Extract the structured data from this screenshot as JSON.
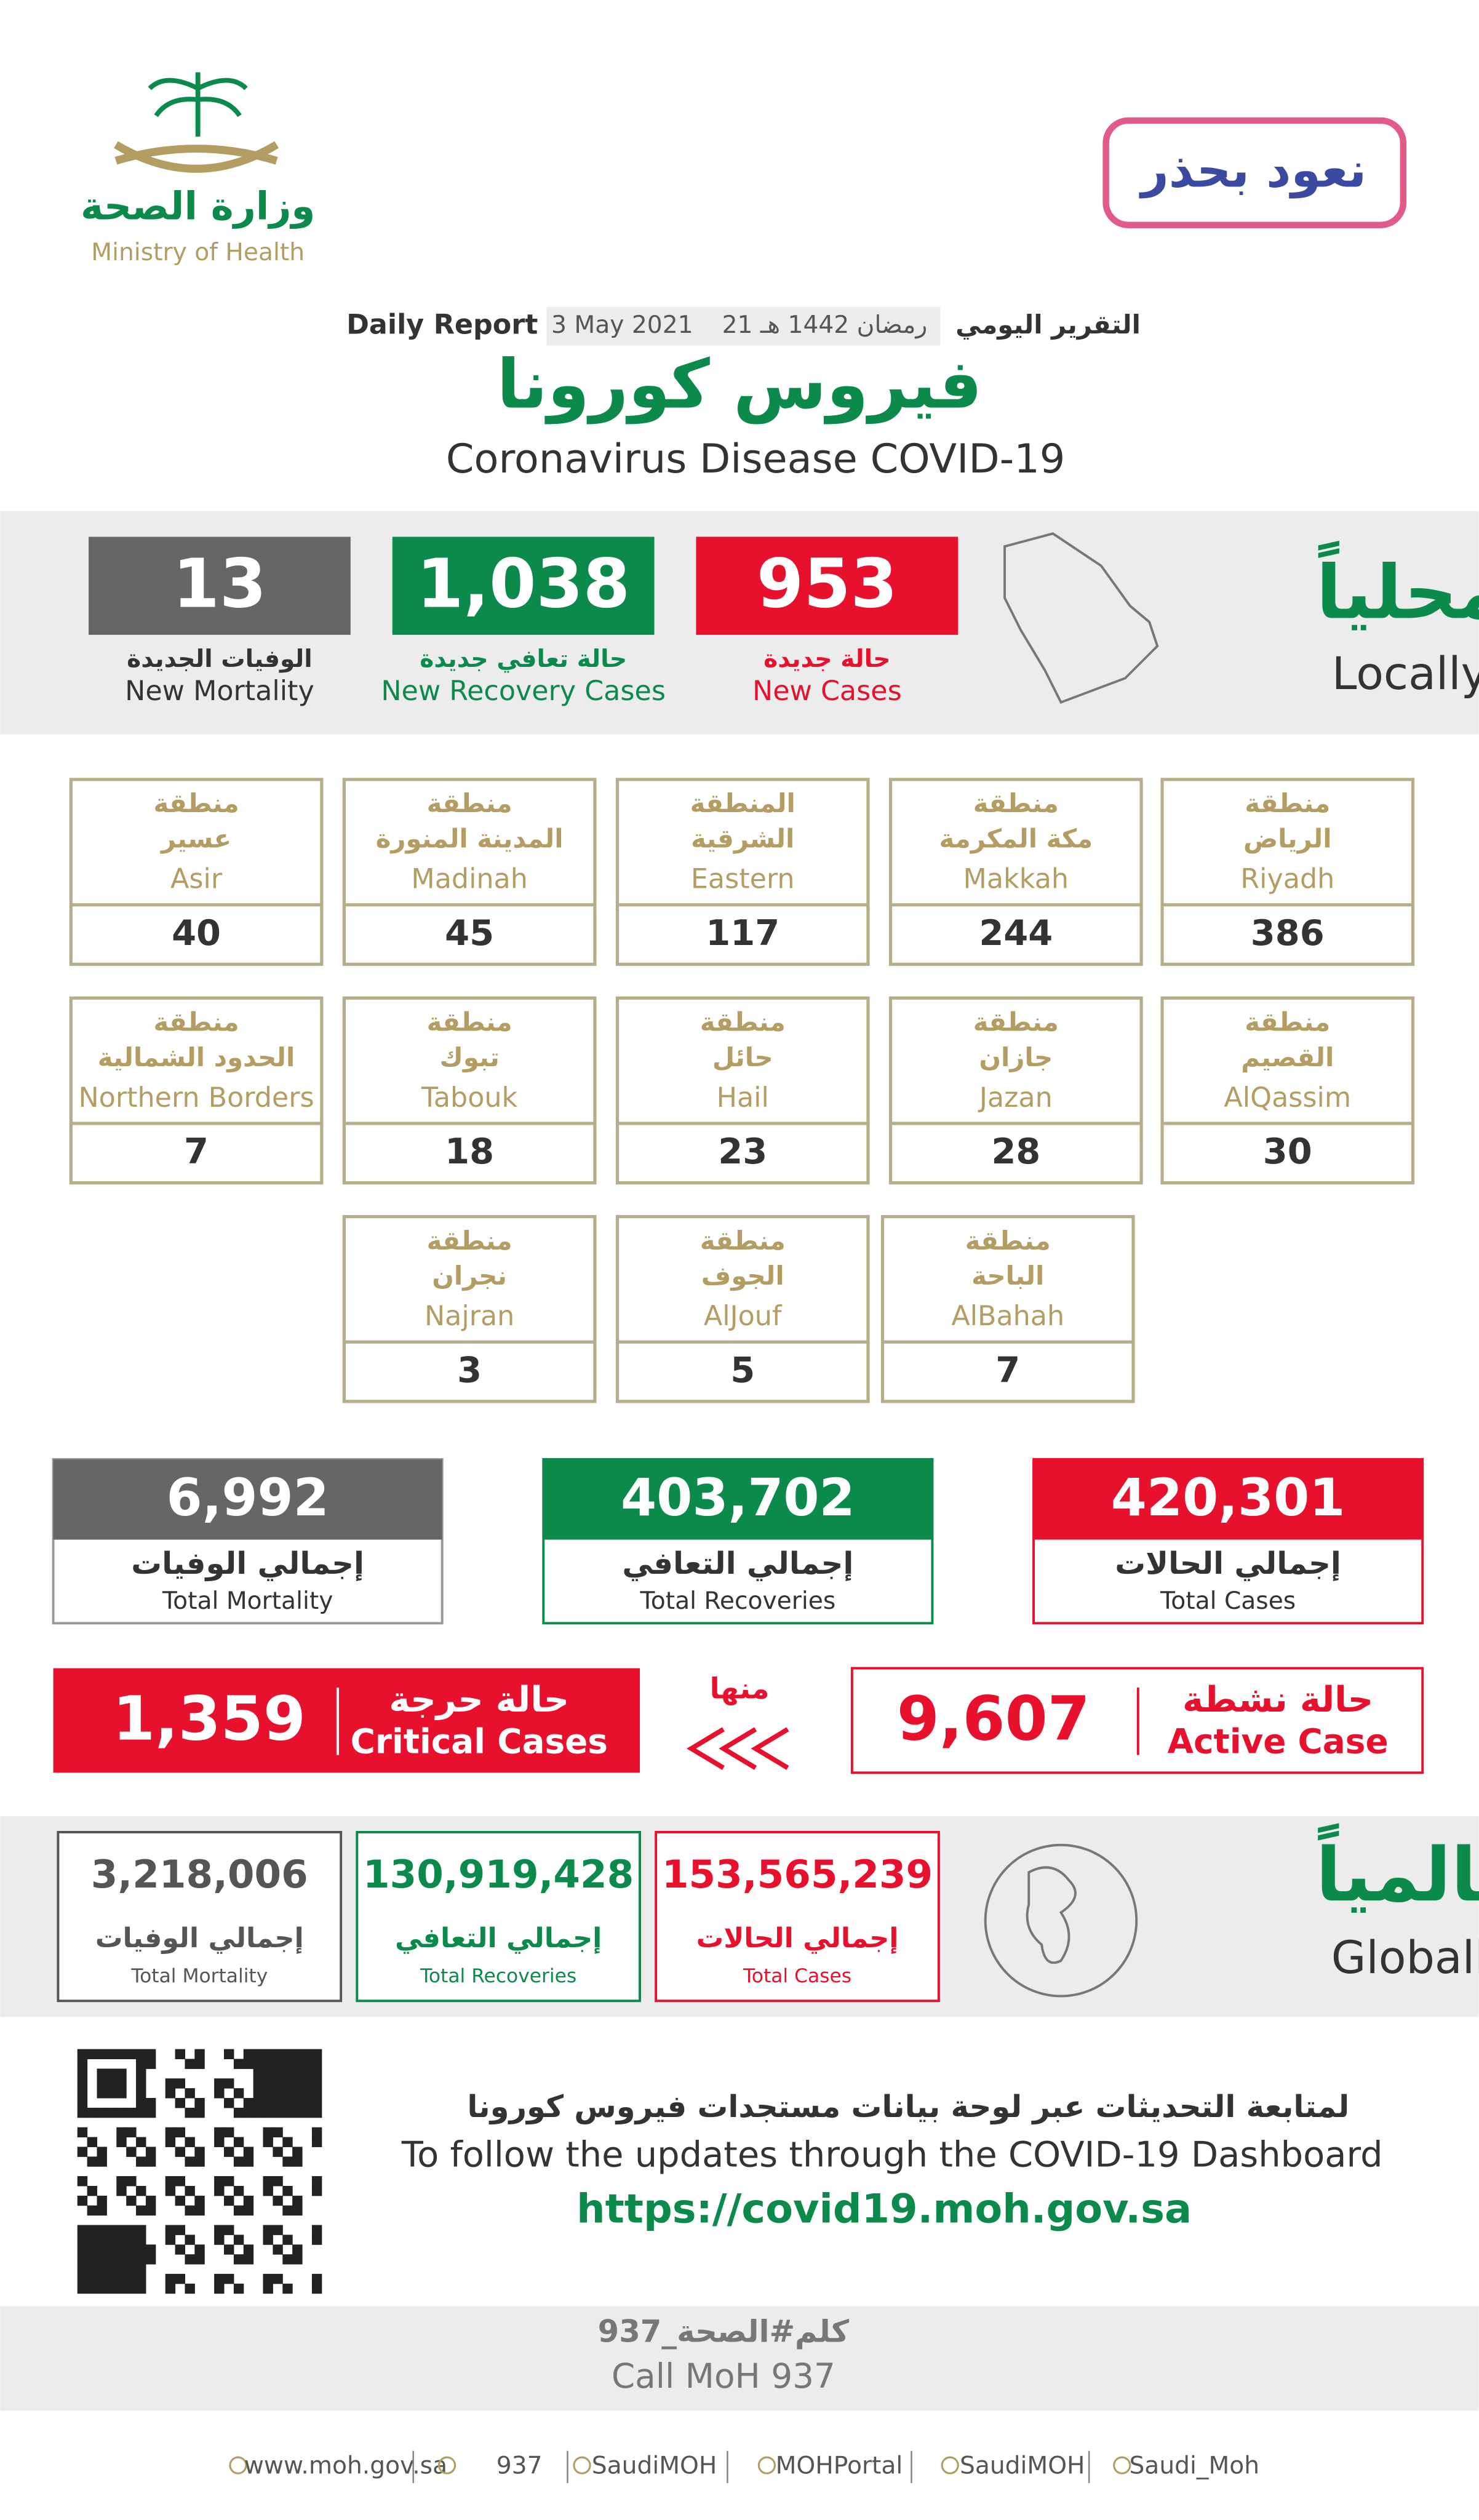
{
  "header": {
    "ministry_ar": "وزارة الصحة",
    "ministry_en": "Ministry of Health",
    "campaign": "نعود بحذر",
    "report_ar": "التقرير اليومي",
    "hijri_date": "21 رمضان 1442 هـ",
    "date": "3 May 2021",
    "report_en": "Daily Report",
    "title_ar": "فيروس كورونا",
    "title_en": "Coronavirus Disease COVID-19"
  },
  "local": {
    "title_ar": "محلياً",
    "title_en": "Locally",
    "stats": [
      {
        "value": "953",
        "label_ar": "حالة جديدة",
        "label_en": "New Cases",
        "color": "#e8112d"
      },
      {
        "value": "1,038",
        "label_ar": "حالة تعافي جديدة",
        "label_en": "New Recovery Cases",
        "color": "#0b8a4b"
      },
      {
        "value": "13",
        "label_ar": "الوفيات الجديدة",
        "label_en": "New Mortality",
        "color": "#666666"
      }
    ]
  },
  "regions": [
    {
      "prefix": "منطقة",
      "name_ar": "الرياض",
      "name_en": "Riyadh",
      "value": "386"
    },
    {
      "prefix": "منطقة",
      "name_ar": "مكة المكرمة",
      "name_en": "Makkah",
      "value": "244"
    },
    {
      "prefix": "المنطقة",
      "name_ar": "الشرقية",
      "name_en": "Eastern",
      "value": "117"
    },
    {
      "prefix": "منطقة",
      "name_ar": "المدينة المنورة",
      "name_en": "Madinah",
      "value": "45"
    },
    {
      "prefix": "منطقة",
      "name_ar": "عسير",
      "name_en": "Asir",
      "value": "40"
    },
    {
      "prefix": "منطقة",
      "name_ar": "القصيم",
      "name_en": "AlQassim",
      "value": "30"
    },
    {
      "prefix": "منطقة",
      "name_ar": "جازان",
      "name_en": "Jazan",
      "value": "28"
    },
    {
      "prefix": "منطقة",
      "name_ar": "حائل",
      "name_en": "Hail",
      "value": "23"
    },
    {
      "prefix": "منطقة",
      "name_ar": "تبوك",
      "name_en": "Tabouk",
      "value": "18"
    },
    {
      "prefix": "منطقة",
      "name_ar": "الحدود الشمالية",
      "name_en": "Northern Borders",
      "value": "7"
    },
    {
      "prefix": "منطقة",
      "name_ar": "الباحة",
      "name_en": "AlBahah",
      "value": "7"
    },
    {
      "prefix": "منطقة",
      "name_ar": "الجوف",
      "name_en": "AlJouf",
      "value": "5"
    },
    {
      "prefix": "منطقة",
      "name_ar": "نجران",
      "name_en": "Najran",
      "value": "3"
    }
  ],
  "totals": [
    {
      "value": "420,301",
      "label_ar": "إجمالي الحالات",
      "label_en": "Total Cases",
      "color": "#e8112d"
    },
    {
      "value": "403,702",
      "label_ar": "إجمالي التعافي",
      "label_en": "Total Recoveries",
      "color": "#0b8a4b"
    },
    {
      "value": "6,992",
      "label_ar": "إجمالي الوفيات",
      "label_en": "Total Mortality",
      "color": "#666666"
    }
  ],
  "active": {
    "value": "9,607",
    "label_ar": "حالة نشطة",
    "label_en": "Active Case"
  },
  "of_which": "منها",
  "critical": {
    "value": "1,359",
    "label_ar": "حالة حرجة",
    "label_en": "Critical Cases"
  },
  "global": {
    "title_ar": "عالمياً",
    "title_en": "Globally",
    "stats": [
      {
        "value": "153,565,239",
        "label_ar": "إجمالي الحالات",
        "label_en": "Total Cases",
        "color": "#e8112d"
      },
      {
        "value": "130,919,428",
        "label_ar": "إجمالي التعافي",
        "label_en": "Total Recoveries",
        "color": "#0b8a4b"
      },
      {
        "value": "3,218,006",
        "label_ar": "إجمالي الوفيات",
        "label_en": "Total Mortality",
        "color": "#555555"
      }
    ]
  },
  "dashboard": {
    "text_ar": "لمتابعة التحديثات عبر لوحة بيانات مستجدات فيروس كورونا",
    "text_en": "To follow the updates through the COVID-19 Dashboard",
    "url": "https://covid19.moh.gov.sa"
  },
  "call": {
    "text_ar": "كلم#الصحة_937",
    "text_en": "Call MoH 937"
  },
  "footer": {
    "links": [
      "www.moh.gov.sa",
      "937",
      "SaudiMOH",
      "MOHPortal",
      "SaudiMOH",
      "Saudi_Moh"
    ]
  }
}
